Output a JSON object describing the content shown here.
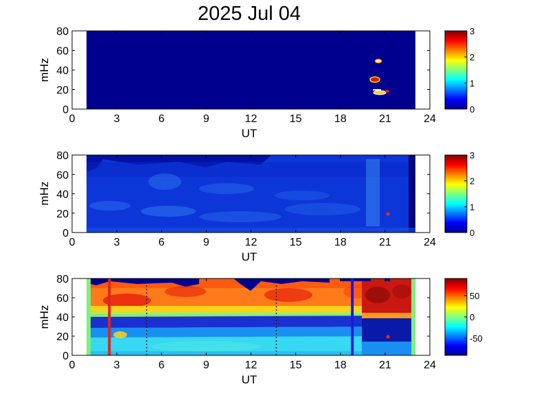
{
  "title": "2025 Jul 04",
  "chart_data": [
    {
      "type": "heatmap",
      "panel": 1,
      "xlabel": "UT",
      "ylabel": "mHz",
      "xlim": [
        0,
        24
      ],
      "ylim": [
        0,
        80
      ],
      "xticks": [
        "0",
        "3",
        "6",
        "9",
        "12",
        "15",
        "18",
        "21",
        "24"
      ],
      "yticks": [
        "0",
        "20",
        "40",
        "60",
        "80"
      ],
      "data_coverage_ut": [
        1.0,
        23.0
      ],
      "colorbar": {
        "range": [
          0,
          3
        ],
        "ticks": [
          "0",
          "1",
          "2",
          "3"
        ]
      },
      "hotspots": [
        {
          "ut": 20.6,
          "mhz": 49,
          "value": 2.2
        },
        {
          "ut": 20.5,
          "mhz": 31,
          "value": 3.0
        },
        {
          "ut": 20.8,
          "mhz": 18,
          "value": 2.6
        },
        {
          "ut": 21.2,
          "mhz": 16,
          "value": 2.4
        }
      ],
      "background_value": 0
    },
    {
      "type": "heatmap",
      "panel": 2,
      "xlabel": "UT",
      "ylabel": "mHz",
      "xlim": [
        0,
        24
      ],
      "ylim": [
        0,
        80
      ],
      "xticks": [
        "0",
        "3",
        "6",
        "9",
        "12",
        "15",
        "18",
        "21",
        "24"
      ],
      "yticks": [
        "0",
        "20",
        "40",
        "60",
        "80"
      ],
      "data_coverage_ut": [
        1.0,
        23.0
      ],
      "colorbar": {
        "range": [
          0,
          3
        ],
        "ticks": [
          "0",
          "1",
          "2",
          "3"
        ]
      },
      "typical_value": 0.5,
      "marker": {
        "ut": 21.2,
        "mhz": 19
      }
    },
    {
      "type": "heatmap",
      "panel": 3,
      "xlabel": "UT",
      "ylabel": "mHz",
      "xlim": [
        0,
        24
      ],
      "ylim": [
        0,
        80
      ],
      "xticks": [
        "0",
        "3",
        "6",
        "9",
        "12",
        "15",
        "18",
        "21",
        "24"
      ],
      "yticks": [
        "0",
        "20",
        "40",
        "60",
        "80"
      ],
      "data_coverage_ut": [
        1.0,
        23.0
      ],
      "colorbar": {
        "range": [
          -90,
          90
        ],
        "ticks": [
          "50",
          "0",
          "-50"
        ]
      },
      "vertical_lines": [
        {
          "ut": 2.5,
          "color": "#e0241c",
          "style": "solid"
        },
        {
          "ut": 5.0,
          "color": "#222222",
          "style": "dotted"
        },
        {
          "ut": 13.7,
          "color": "#222222",
          "style": "dotted"
        },
        {
          "ut": 18.8,
          "color": "#1a1ae6",
          "style": "solid"
        }
      ],
      "marker": {
        "ut": 21.2,
        "mhz": 19
      }
    }
  ]
}
